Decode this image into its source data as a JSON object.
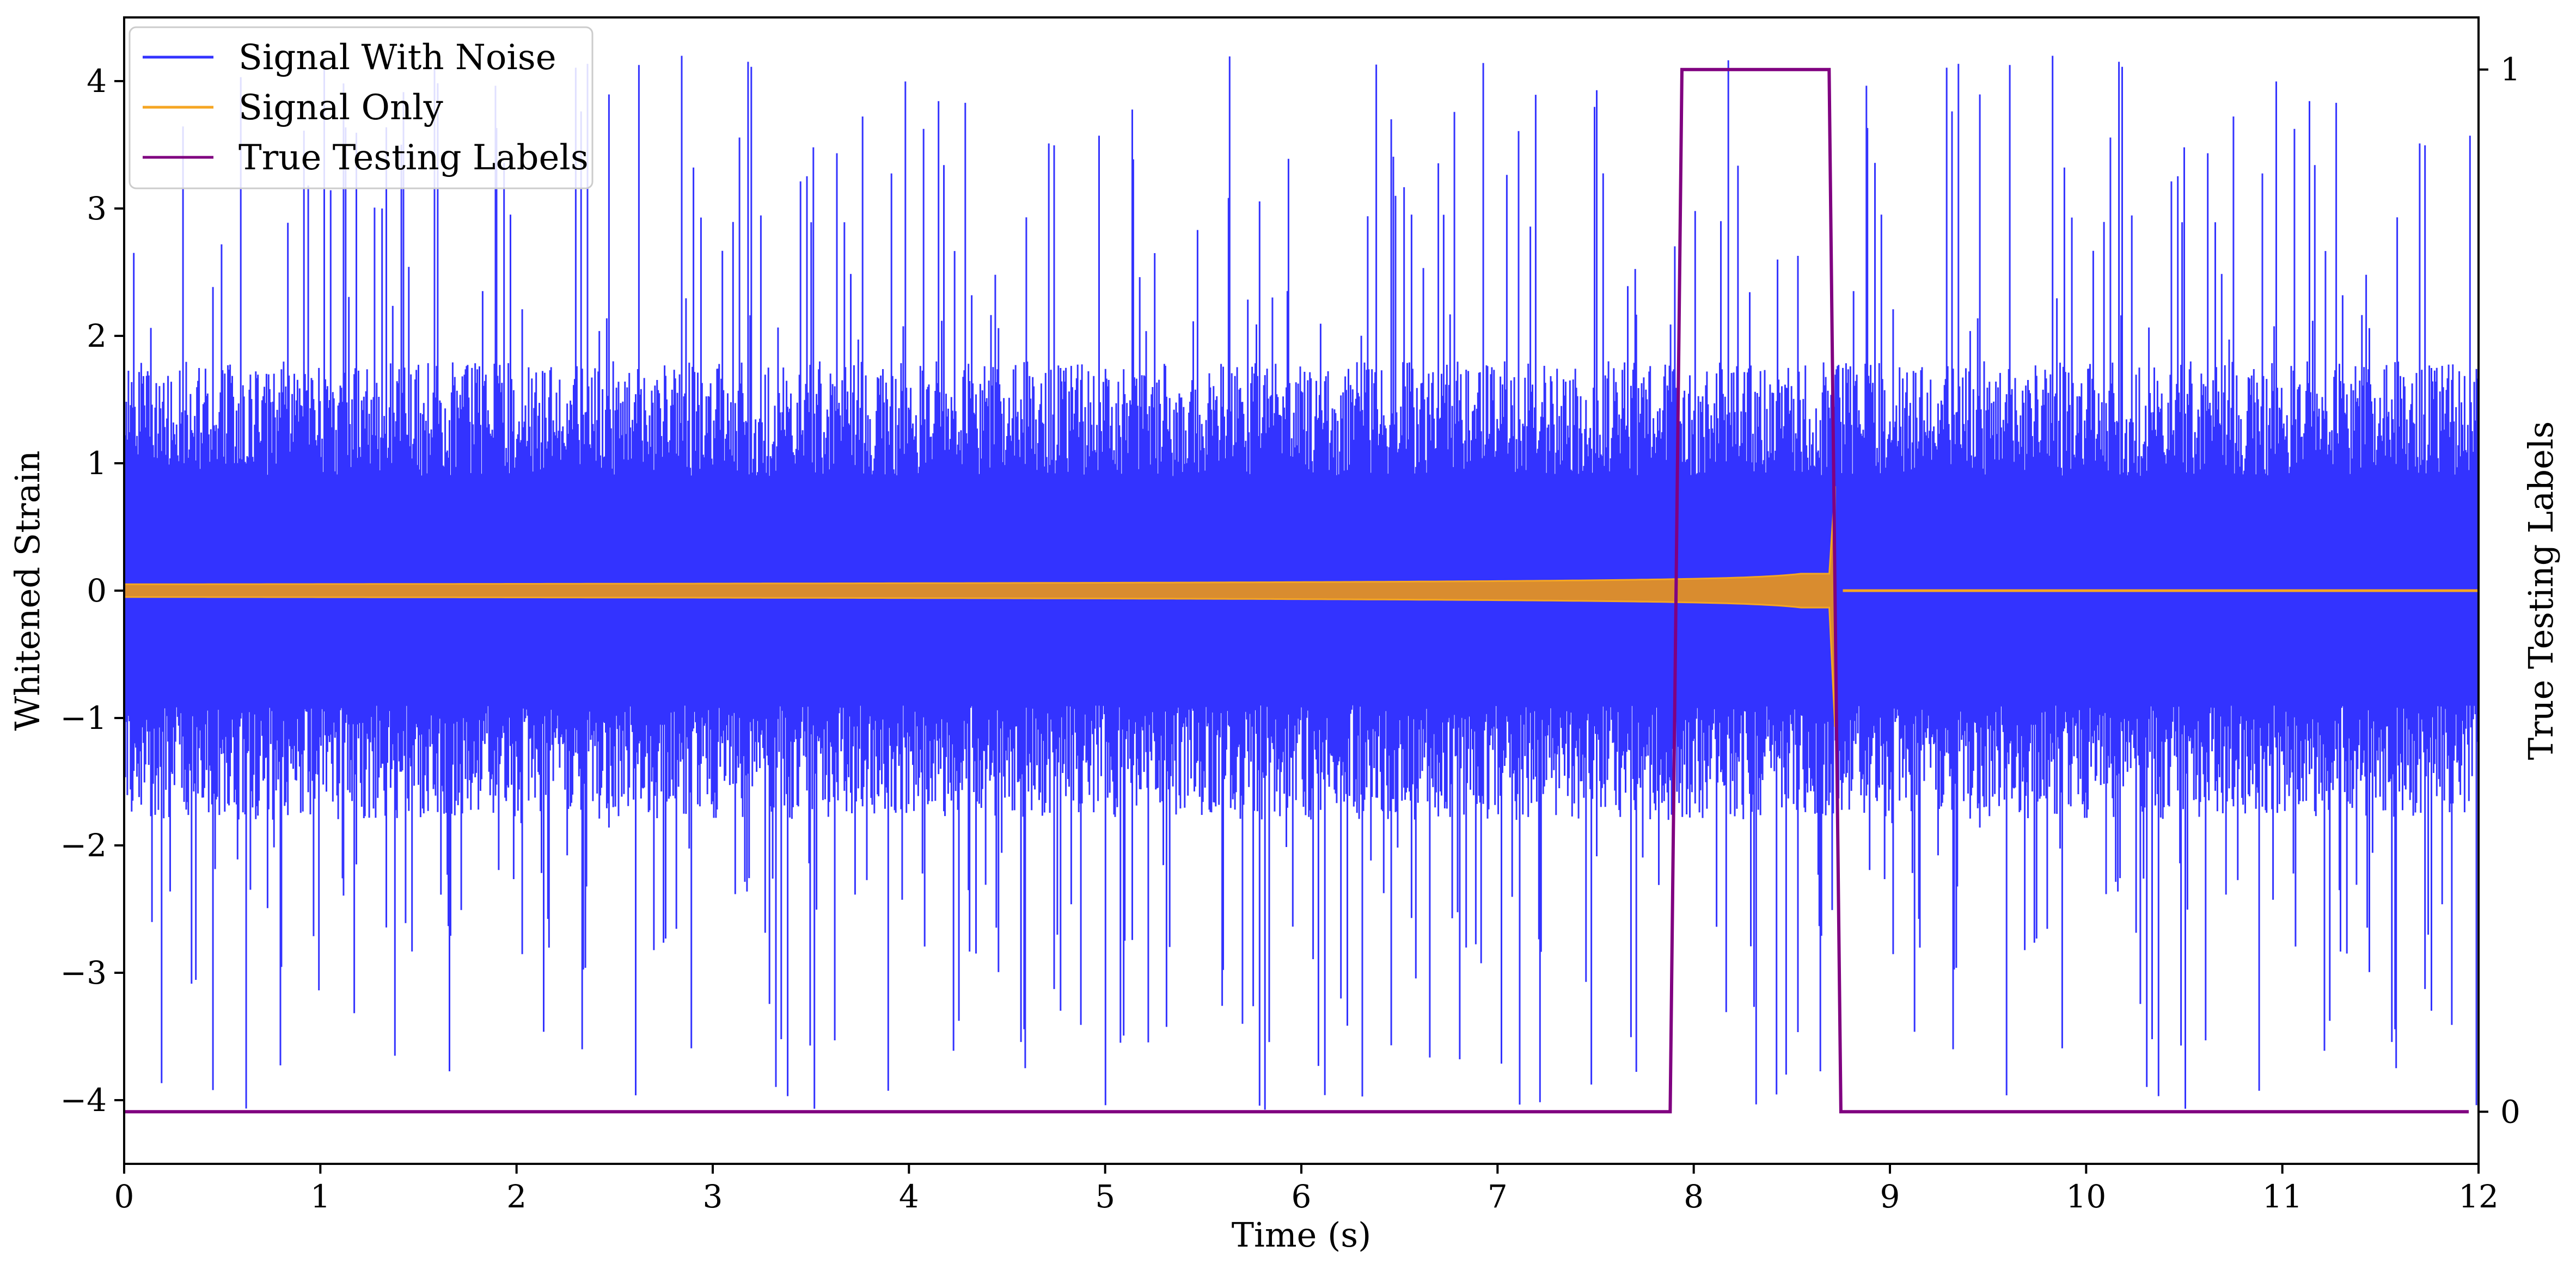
{
  "chart_data": {
    "type": "line",
    "title": "",
    "xlabel": "Time (s)",
    "ylabel": "Whitened Strain",
    "y2label": "True Testing Labels",
    "xlim": [
      0,
      12
    ],
    "ylim": [
      -4.5,
      4.5
    ],
    "y2lim": [
      -0.05,
      1.05
    ],
    "xticks": [
      0,
      1,
      2,
      3,
      4,
      5,
      6,
      7,
      8,
      9,
      10,
      11,
      12
    ],
    "yticks": [
      -4,
      -3,
      -2,
      -1,
      0,
      1,
      2,
      3,
      4
    ],
    "y2ticks": [
      0,
      1
    ],
    "xtick_labels": [
      "0",
      "1",
      "2",
      "3",
      "4",
      "5",
      "6",
      "7",
      "8",
      "9",
      "10",
      "11",
      "12"
    ],
    "ytick_labels": [
      "−4",
      "−3",
      "−2",
      "−1",
      "0",
      "1",
      "2",
      "3",
      "4"
    ],
    "y2tick_labels": [
      "0",
      "1"
    ],
    "grid": false,
    "legend_position": "top-left",
    "series": [
      {
        "name": "Signal With Noise",
        "color": "#3333ff",
        "axis": "left",
        "description_values": {
          "baseline_band": [
            -1.5,
            1.5
          ],
          "peak_max": 4.2,
          "peak_min": -4.1
        }
      },
      {
        "name": "Signal Only",
        "color": "#f5a623",
        "axis": "left",
        "description_values": {
          "chirp_start_time": 0,
          "chirp_end_time": 8.72,
          "amplitude_start": 0.05,
          "amplitude_end_max": 0.82,
          "amplitude_end_min": -1.07,
          "flat_after": 0
        }
      },
      {
        "name": "True Testing Labels",
        "color": "#800080",
        "axis": "right",
        "x": [
          0,
          7.88,
          7.94,
          8.69,
          8.75,
          11.95
        ],
        "values": [
          0,
          0,
          1,
          1,
          0,
          0
        ]
      }
    ]
  }
}
